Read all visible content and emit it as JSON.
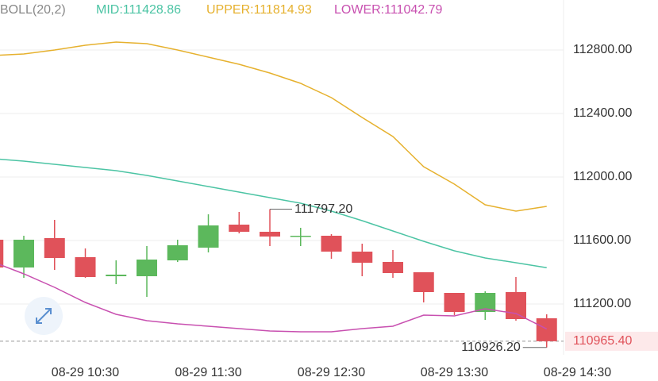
{
  "chart_data": {
    "type": "candlestick",
    "indicator": "BOLL(20,2)",
    "up_color": "#5cb85c",
    "down_color": "#e0525a",
    "ylim": [
      110880,
      113115
    ],
    "yticks": [
      {
        "value": 111200,
        "label": "111200.00"
      },
      {
        "value": 111600,
        "label": "111600.00"
      },
      {
        "value": 112000,
        "label": "112000.00"
      },
      {
        "value": 112400,
        "label": "112400.00"
      },
      {
        "value": 112800,
        "label": "112800.00"
      }
    ],
    "xticks": [
      {
        "value": 3,
        "label": "08-29 10:30"
      },
      {
        "value": 7,
        "label": "08-29 11:30"
      },
      {
        "value": 11,
        "label": "08-29 12:30"
      },
      {
        "value": 15,
        "label": "08-29 13:30"
      },
      {
        "value": 19,
        "label": "08-29 14:30"
      }
    ],
    "grid": true,
    "open": [
      111605,
      111430,
      111615,
      111495,
      111375,
      111375,
      111475,
      111555,
      111700,
      111655,
      111625,
      111630,
      111530,
      111465,
      111400,
      111270,
      111150,
      111275,
      111110
    ],
    "high": [
      111615,
      111630,
      111730,
      111550,
      111475,
      111565,
      111605,
      111765,
      111780,
      111797.2,
      111680,
      111640,
      111580,
      111540,
      111400,
      111270,
      111280,
      111370,
      111135
    ],
    "low": [
      111410,
      111365,
      111415,
      111365,
      111325,
      111245,
      111465,
      111525,
      111645,
      111565,
      111565,
      111485,
      111375,
      111365,
      111210,
      111130,
      111100,
      111095,
      110926.2
    ],
    "close": [
      111430,
      111605,
      111490,
      111370,
      111385,
      111480,
      111570,
      111695,
      111655,
      111625,
      111630,
      111530,
      111460,
      111395,
      111275,
      111150,
      111270,
      111105,
      110965.4
    ],
    "max_label": "111797.20",
    "min_label": "110926.20",
    "last_label": "110965.40",
    "series": [
      {
        "name": "MID",
        "legend_label": "MID:111428.86",
        "color": "#4cc4a4",
        "values": [
          112115,
          112100,
          112080,
          112060,
          112040,
          112010,
          111975,
          111940,
          111905,
          111870,
          111835,
          111785,
          111725,
          111660,
          111595,
          111535,
          111490,
          111460,
          111428.86
        ]
      },
      {
        "name": "UPPER",
        "legend_label": "UPPER:111814.93",
        "color": "#e6b12e",
        "values": [
          112765,
          112775,
          112800,
          112830,
          112850,
          112840,
          112800,
          112755,
          112710,
          112655,
          112590,
          112500,
          112375,
          112255,
          112065,
          111955,
          111825,
          111785,
          111814.93
        ]
      },
      {
        "name": "LOWER",
        "legend_label": "LOWER:111042.79",
        "color": "#c850b0",
        "values": [
          111465,
          111390,
          111305,
          111210,
          111135,
          111095,
          111075,
          111060,
          111045,
          111030,
          111025,
          111025,
          111045,
          111060,
          111130,
          111125,
          111170,
          111140,
          111042.79
        ]
      }
    ]
  }
}
